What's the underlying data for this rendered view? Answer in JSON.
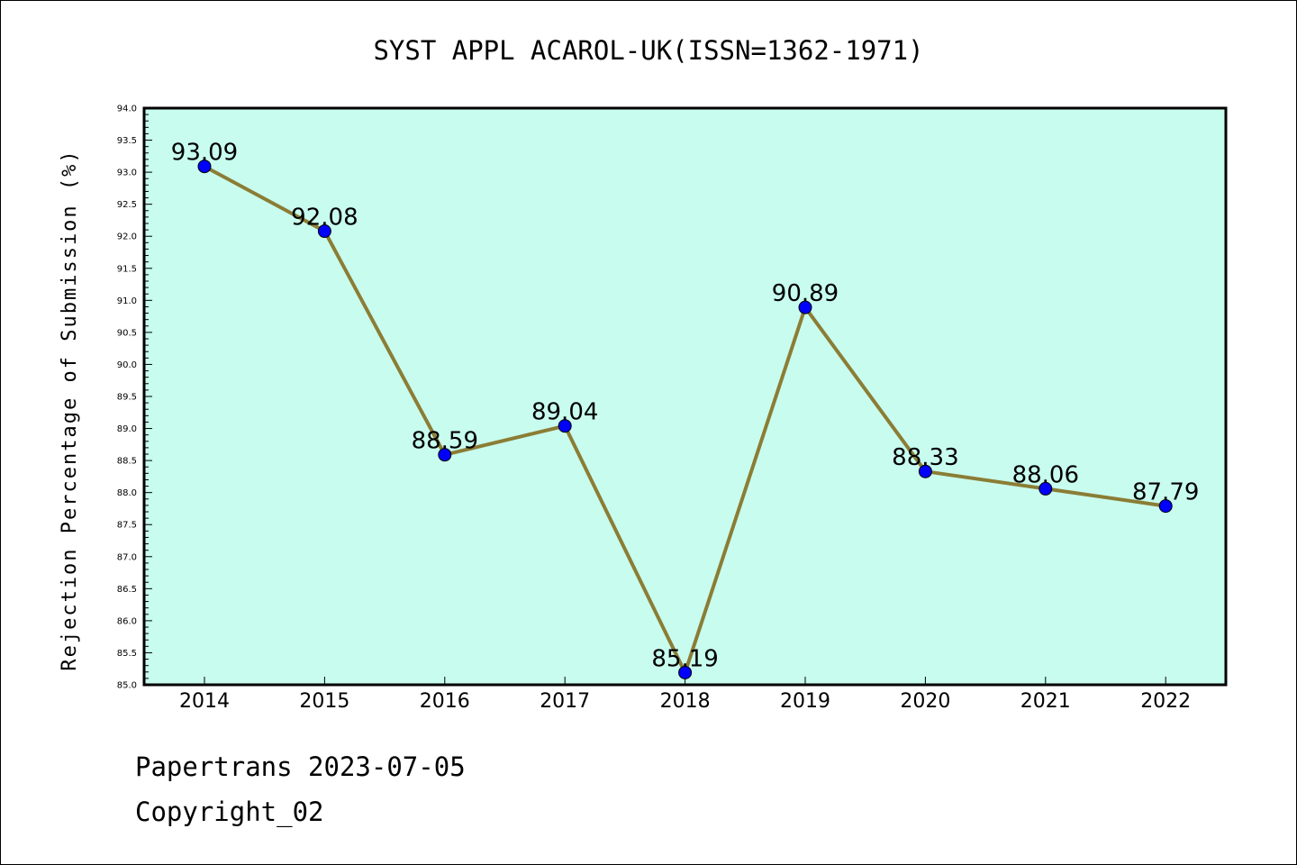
{
  "chart_data": {
    "type": "line",
    "title": "SYST APPL ACAROL-UK(ISSN=1362-1971)",
    "xlabel": "",
    "ylabel": "Rejection Percentage of Submission (%)",
    "categories": [
      "2014",
      "2015",
      "2016",
      "2017",
      "2018",
      "2019",
      "2020",
      "2021",
      "2022"
    ],
    "series": [
      {
        "values": [
          93.09,
          92.08,
          88.59,
          89.04,
          85.19,
          90.89,
          88.33,
          88.06,
          87.79
        ],
        "labels": [
          "93.09",
          "92.08",
          "88.59",
          "89.04",
          "85.19",
          "90.89",
          "88.33",
          "88.06",
          "87.79"
        ],
        "line_color": "#8b7d35",
        "marker_color": "#0000ff"
      }
    ],
    "ylim": [
      85.0,
      94.0
    ],
    "yticks": [
      "85.0",
      "85.5",
      "86.0",
      "86.5",
      "87.0",
      "87.5",
      "88.0",
      "88.5",
      "89.0",
      "89.5",
      "90.0",
      "90.5",
      "91.0",
      "91.5",
      "92.0",
      "92.5",
      "93.0",
      "93.5",
      "94.0"
    ],
    "plot_background": "#c8fcee",
    "grid": false,
    "legend": "none"
  },
  "footer": {
    "source": "Papertrans 2023-07-05",
    "copyright": "Copyright_02"
  }
}
